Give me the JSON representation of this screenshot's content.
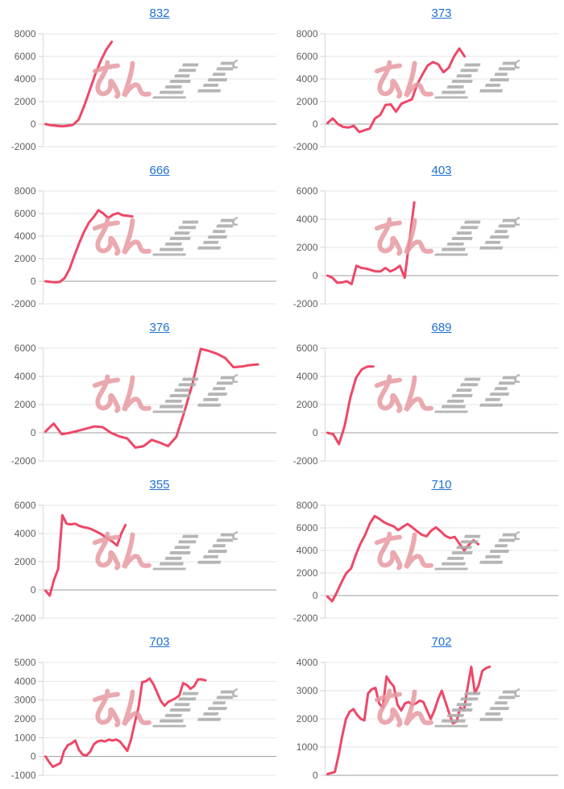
{
  "style": {
    "background": "#ffffff",
    "link_color": "#1e70d2",
    "line_color": "#ee4768",
    "grid_color": "#e6e6e6",
    "zero_line_color": "#9c9c9c",
    "axis_line_color": "#d9d9d9",
    "tick_color": "#cfcfcf",
    "label_color": "#5f5f5f"
  },
  "watermark": {
    "text": "みんレポ",
    "pink_text": "みん",
    "gray_text": "レポ",
    "pink_color": "#e79aa2",
    "gray_color": "#aeaeae"
  },
  "chart_data": [
    {
      "type": "line",
      "title": "832",
      "ylim": [
        -2000,
        8000
      ],
      "yticks": [
        "8000",
        "6000",
        "4000",
        "2000",
        "0",
        "-2000"
      ],
      "x_extent": 0.29,
      "values": [
        0,
        -100,
        -150,
        -200,
        -150,
        -50,
        400,
        1600,
        3000,
        4400,
        5600,
        6600,
        7300
      ]
    },
    {
      "type": "line",
      "title": "373",
      "ylim": [
        -2000,
        8000
      ],
      "yticks": [
        "8000",
        "6000",
        "4000",
        "2000",
        "0",
        "-2000"
      ],
      "x_extent": 0.6,
      "values": [
        100,
        500,
        0,
        -250,
        -300,
        -150,
        -700,
        -550,
        -400,
        500,
        800,
        1700,
        1750,
        1100,
        1800,
        2000,
        2200,
        3500,
        4400,
        5200,
        5500,
        5300,
        4600,
        5000,
        6000,
        6700,
        6000
      ]
    },
    {
      "type": "line",
      "title": "666",
      "ylim": [
        -2000,
        8000
      ],
      "yticks": [
        "8000",
        "6000",
        "4000",
        "2000",
        "0",
        "-2000"
      ],
      "x_extent": 0.38,
      "values": [
        0,
        -50,
        -100,
        -50,
        300,
        1100,
        2300,
        3400,
        4400,
        5200,
        5700,
        6300,
        6000,
        5600,
        5900,
        6050,
        5850,
        5800,
        5750
      ]
    },
    {
      "type": "line",
      "title": "403",
      "ylim": [
        -2000,
        6000
      ],
      "yticks": [
        "6000",
        "4000",
        "2000",
        "0",
        "-2000"
      ],
      "x_extent": 0.38,
      "values": [
        0,
        -150,
        -500,
        -480,
        -400,
        -600,
        700,
        550,
        500,
        400,
        300,
        300,
        550,
        300,
        450,
        700,
        -150,
        2500,
        5200
      ]
    },
    {
      "type": "line",
      "title": "376",
      "ylim": [
        -2000,
        6000
      ],
      "yticks": [
        "6000",
        "4000",
        "2000",
        "0",
        "-2000"
      ],
      "x_extent": 0.93,
      "values": [
        100,
        650,
        -100,
        0,
        150,
        300,
        450,
        400,
        0,
        -250,
        -400,
        -1050,
        -950,
        -500,
        -700,
        -950,
        -300,
        1500,
        3500,
        5950,
        5800,
        5600,
        5300,
        4650,
        4700,
        4800,
        4850
      ]
    },
    {
      "type": "line",
      "title": "689",
      "ylim": [
        -2000,
        6000
      ],
      "yticks": [
        "6000",
        "4000",
        "2000",
        "0",
        "-2000"
      ],
      "x_extent": 0.2,
      "values": [
        0,
        -100,
        -800,
        500,
        2500,
        3900,
        4500,
        4700,
        4700
      ]
    },
    {
      "type": "line",
      "title": "355",
      "ylim": [
        -2000,
        6000
      ],
      "yticks": [
        "6000",
        "4000",
        "2000",
        "0",
        "-2000"
      ],
      "x_extent": 0.35,
      "values": [
        -50,
        -400,
        700,
        1500,
        5300,
        4700,
        4650,
        4700,
        4550,
        4450,
        4400,
        4300,
        4150,
        4000,
        3800,
        3600,
        3400,
        3150,
        4000,
        4600
      ]
    },
    {
      "type": "line",
      "title": "710",
      "ylim": [
        -2000,
        8000
      ],
      "yticks": [
        "8000",
        "6000",
        "4000",
        "2000",
        "0",
        "-2000"
      ],
      "x_extent": 0.66,
      "values": [
        -100,
        -500,
        300,
        1200,
        2000,
        2400,
        3600,
        4600,
        5400,
        6400,
        7050,
        6800,
        6500,
        6300,
        6150,
        5800,
        6100,
        6350,
        6050,
        5700,
        5400,
        5250,
        5750,
        6050,
        5700,
        5300,
        5100,
        5200,
        4600,
        4000,
        4500,
        4900,
        4550
      ]
    },
    {
      "type": "line",
      "title": "703",
      "ylim": [
        -1000,
        5000
      ],
      "yticks": [
        "5000",
        "4000",
        "3000",
        "2000",
        "1000",
        "0",
        "-1000"
      ],
      "x_extent": 0.7,
      "values": [
        0,
        -300,
        -550,
        -450,
        -350,
        300,
        600,
        700,
        850,
        350,
        100,
        50,
        250,
        650,
        800,
        850,
        800,
        900,
        850,
        900,
        800,
        550,
        300,
        900,
        1800,
        2600,
        3950,
        4000,
        4150,
        3850,
        3400,
        2950,
        2700,
        2900,
        3000,
        3100,
        3250,
        3900,
        3800,
        3600,
        3750,
        4100,
        4100,
        4050
      ]
    },
    {
      "type": "line",
      "title": "702",
      "ylim": [
        0,
        4000
      ],
      "yticks": [
        "4000",
        "3000",
        "2000",
        "1000",
        "0"
      ],
      "x_extent": 0.71,
      "values": [
        50,
        80,
        120,
        700,
        1400,
        2000,
        2250,
        2350,
        2150,
        2000,
        1950,
        2900,
        3050,
        3100,
        2550,
        2400,
        3500,
        3300,
        3150,
        2500,
        2300,
        2550,
        2600,
        2500,
        2550,
        2650,
        2600,
        2300,
        2000,
        2300,
        2700,
        3000,
        2600,
        2200,
        1850,
        1900,
        2400,
        2300,
        3100,
        3850,
        2900,
        3200,
        3700,
        3800,
        3850
      ]
    }
  ]
}
